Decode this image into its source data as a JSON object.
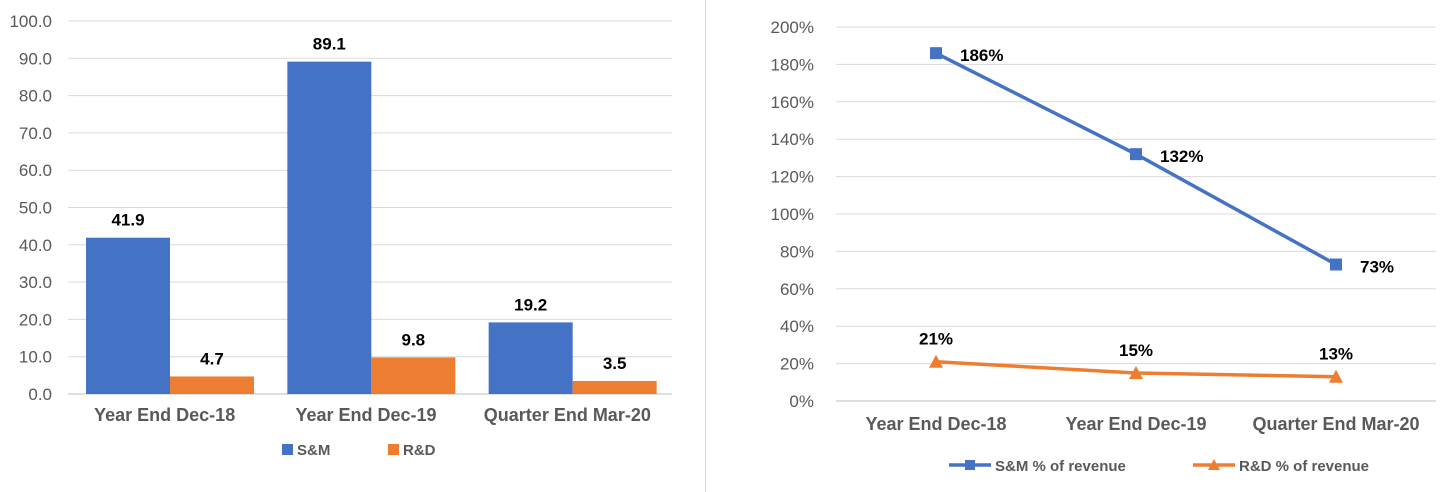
{
  "colors": {
    "sm": "#4472C4",
    "rd": "#ED7D31",
    "grid": "#D9D9D9",
    "axis": "#BFBFBF"
  },
  "chart_data": [
    {
      "type": "bar",
      "categories": [
        "Year End Dec-18",
        "Year End Dec-19",
        "Quarter End Mar-20"
      ],
      "series": [
        {
          "name": "S&M",
          "values": [
            41.9,
            89.1,
            19.2
          ],
          "labels": [
            "41.9",
            "89.1",
            "19.2"
          ]
        },
        {
          "name": "R&D",
          "values": [
            4.7,
            9.8,
            3.5
          ],
          "labels": [
            "4.7",
            "9.8",
            "3.5"
          ]
        }
      ],
      "ylim": [
        0,
        100
      ],
      "yticks": [
        "0.0",
        "10.0",
        "20.0",
        "30.0",
        "40.0",
        "50.0",
        "60.0",
        "70.0",
        "80.0",
        "90.0",
        "100.0"
      ],
      "grid": true,
      "legend": "bottom"
    },
    {
      "type": "line",
      "categories": [
        "Year End Dec-18",
        "Year End Dec-19",
        "Quarter End Mar-20"
      ],
      "series": [
        {
          "name": "S&M % of revenue",
          "values": [
            186,
            132,
            73
          ],
          "labels": [
            "186%",
            "132%",
            "73%"
          ],
          "marker": "square"
        },
        {
          "name": "R&D % of revenue",
          "values": [
            21,
            15,
            13
          ],
          "labels": [
            "21%",
            "15%",
            "13%"
          ],
          "marker": "triangle"
        }
      ],
      "ylim": [
        0,
        200
      ],
      "yticks": [
        "0%",
        "20%",
        "40%",
        "60%",
        "80%",
        "100%",
        "120%",
        "140%",
        "160%",
        "180%",
        "200%"
      ],
      "grid": true,
      "legend": "bottom"
    }
  ]
}
